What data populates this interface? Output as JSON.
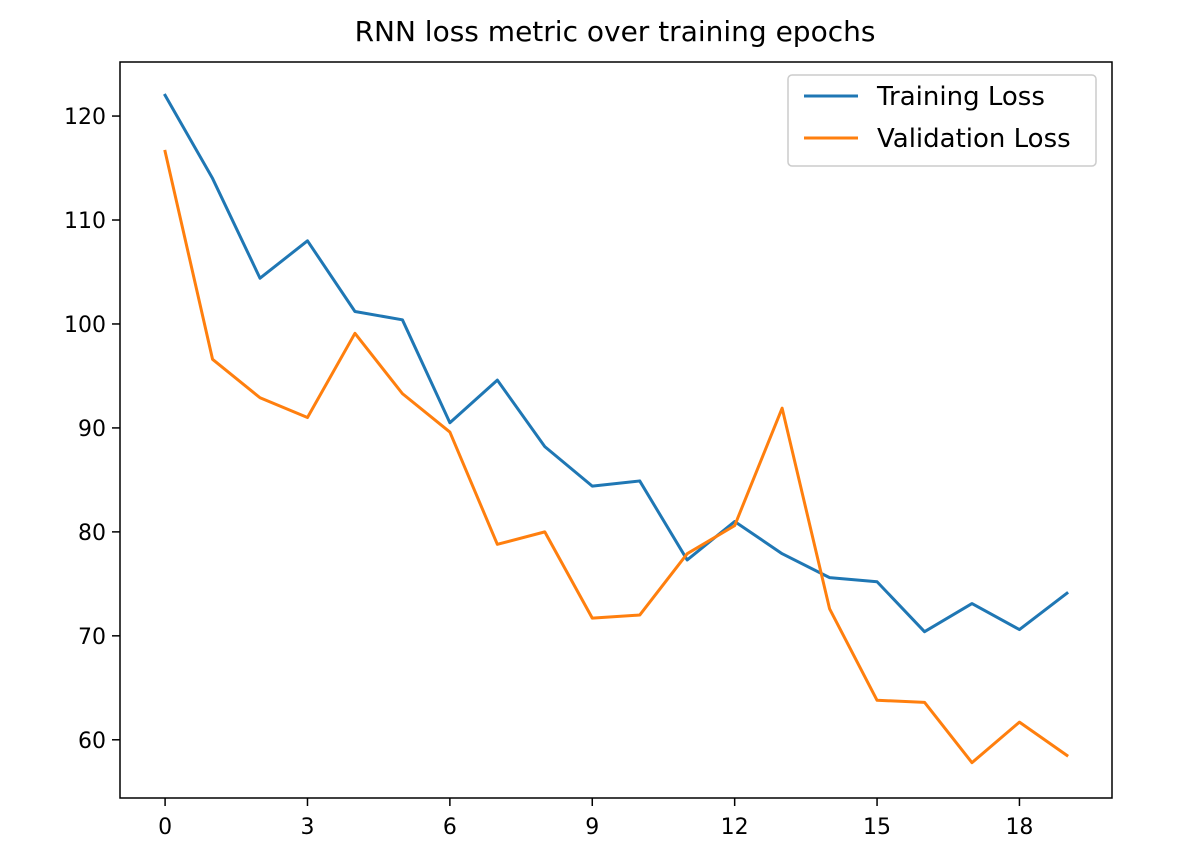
{
  "chart_data": {
    "type": "line",
    "title": "RNN loss metric over training epochs",
    "xlabel": "",
    "ylabel": "",
    "x": [
      0,
      1,
      2,
      3,
      4,
      5,
      6,
      7,
      8,
      9,
      10,
      11,
      12,
      13,
      14,
      15,
      16,
      17,
      18,
      19
    ],
    "xlim": [
      -0.95,
      19.95
    ],
    "ylim": [
      54.4,
      125.2
    ],
    "x_ticks": [
      0,
      3,
      6,
      9,
      12,
      15,
      18
    ],
    "y_ticks": [
      60,
      70,
      80,
      90,
      100,
      110,
      120
    ],
    "grid": false,
    "legend_position": "top-right",
    "series": [
      {
        "name": "Training Loss",
        "color": "#1f77b4",
        "values": [
          122.0,
          114.0,
          104.4,
          108.0,
          101.2,
          100.4,
          90.5,
          94.6,
          88.2,
          84.4,
          84.9,
          77.3,
          81.0,
          77.9,
          75.6,
          75.2,
          70.4,
          73.1,
          70.6,
          74.1
        ]
      },
      {
        "name": "Validation Loss",
        "color": "#ff7f0e",
        "values": [
          116.6,
          96.6,
          92.9,
          91.0,
          99.1,
          93.3,
          89.6,
          78.8,
          80.0,
          71.7,
          72.0,
          77.9,
          80.6,
          91.9,
          72.6,
          63.8,
          63.6,
          57.8,
          61.7,
          58.5
        ]
      }
    ]
  }
}
